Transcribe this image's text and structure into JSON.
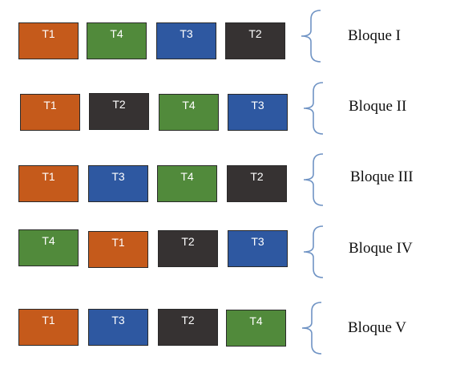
{
  "colors": {
    "T1": "#c55a1b",
    "T2": "#363232",
    "T3": "#2e58a1",
    "T4": "#518a3b"
  },
  "blocks": [
    {
      "label": "Bloque I",
      "treatments": [
        "T1",
        "T4",
        "T3",
        "T2"
      ]
    },
    {
      "label": "Bloque II",
      "treatments": [
        "T1",
        "T2",
        "T4",
        "T3"
      ]
    },
    {
      "label": "Bloque III",
      "treatments": [
        "T1",
        "T3",
        "T4",
        "T2"
      ]
    },
    {
      "label": "Bloque IV",
      "treatments": [
        "T4",
        "T1",
        "T2",
        "T3"
      ]
    },
    {
      "label": "Bloque V",
      "treatments": [
        "T1",
        "T3",
        "T2",
        "T4"
      ]
    }
  ]
}
